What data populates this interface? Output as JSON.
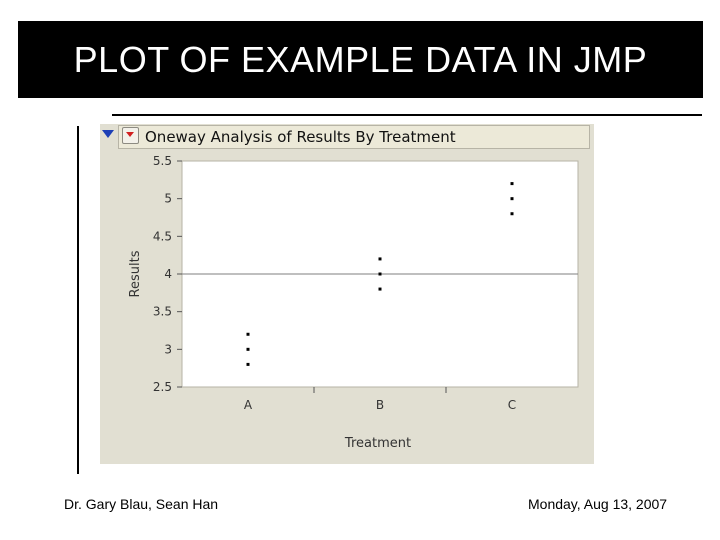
{
  "slide": {
    "title": "PLOT OF EXAMPLE DATA IN JMP",
    "footer_left": "Dr. Gary Blau, Sean Han",
    "footer_right": "Monday, Aug 13, 2007"
  },
  "jmp": {
    "panel_title": "Oneway Analysis of Results By Treatment",
    "outline_icon": "disclosure-triangle-icon",
    "menu_icon": "red-triangle-menu-icon"
  },
  "chart_data": {
    "type": "scatter",
    "title": "Oneway Analysis of Results By Treatment",
    "xlabel": "Treatment",
    "ylabel": "Results",
    "categories": [
      "A",
      "B",
      "C"
    ],
    "y_ticks": [
      "2.5",
      "3",
      "3.5",
      "4",
      "4.5",
      "5",
      "5.5"
    ],
    "ylim": [
      2.5,
      5.5
    ],
    "grand_mean": 4,
    "series": [
      {
        "category": "A",
        "values": [
          2.8,
          3.0,
          3.2
        ]
      },
      {
        "category": "B",
        "values": [
          3.8,
          4.0,
          4.2
        ]
      },
      {
        "category": "C",
        "values": [
          4.8,
          5.0,
          5.2
        ]
      }
    ],
    "grid": false,
    "colors": {
      "points": "#000000",
      "mean_line": "#7f7f7f",
      "background": "#e1dfd2"
    }
  }
}
